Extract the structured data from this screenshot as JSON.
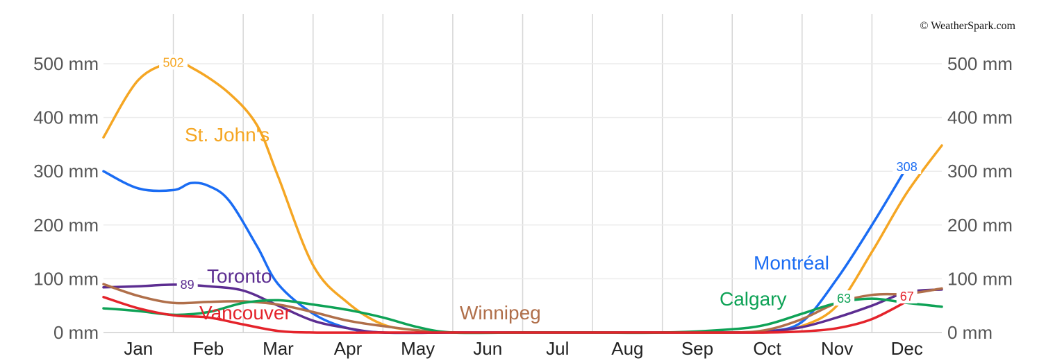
{
  "credit": "© WeatherSpark.com",
  "chart_data": {
    "type": "line",
    "title": "",
    "xlabel": "",
    "ylabel": "",
    "unit": "mm",
    "ylim": [
      0,
      550
    ],
    "y_ticks": [
      0,
      100,
      200,
      300,
      400,
      500
    ],
    "y_tick_labels": [
      "0 mm",
      "100 mm",
      "200 mm",
      "300 mm",
      "400 mm",
      "500 mm"
    ],
    "categories": [
      "Jan",
      "Feb",
      "Mar",
      "Apr",
      "May",
      "Jun",
      "Jul",
      "Aug",
      "Sep",
      "Oct",
      "Nov",
      "Dec"
    ],
    "grid": true,
    "legend": "inline labels",
    "series": [
      {
        "name": "St. John's",
        "color": "#f5a623",
        "x": [
          0,
          0.5,
          1,
          1.3,
          1.8,
          2.2,
          2.5,
          3,
          3.5,
          4,
          4.5,
          5,
          6,
          7,
          8,
          9,
          9.5,
          10,
          10.5,
          11,
          11.5,
          12
        ],
        "y": [
          363,
          470,
          502,
          490,
          445,
          385,
          290,
          125,
          55,
          15,
          4,
          0,
          0,
          0,
          0,
          0,
          2,
          12,
          50,
          150,
          260,
          348
        ],
        "labels": [
          {
            "x": 1,
            "y": 502,
            "text": "502"
          }
        ]
      },
      {
        "name": "Montréal",
        "color": "#1a6cf3",
        "x": [
          0,
          0.5,
          1,
          1.25,
          1.5,
          1.8,
          2.2,
          2.5,
          3,
          3.5,
          4,
          5,
          6,
          7,
          8,
          9,
          9.5,
          10,
          10.5,
          11,
          11.5
        ],
        "y": [
          300,
          268,
          265,
          278,
          273,
          245,
          160,
          90,
          35,
          8,
          0,
          0,
          0,
          0,
          0,
          0,
          2,
          20,
          100,
          200,
          308
        ],
        "labels": [
          {
            "x": 11.5,
            "y": 308,
            "text": "308"
          }
        ]
      },
      {
        "name": "Toronto",
        "color": "#5c2d91",
        "x": [
          0,
          0.5,
          1,
          1.5,
          2,
          2.5,
          3,
          3.5,
          4,
          5,
          6,
          7,
          8,
          9,
          9.5,
          10,
          10.5,
          11,
          11.5,
          12
        ],
        "y": [
          84,
          86,
          89,
          86,
          78,
          50,
          22,
          8,
          0,
          0,
          0,
          0,
          0,
          0,
          2,
          10,
          28,
          50,
          75,
          80
        ],
        "labels": [
          {
            "x": 1.2,
            "y": 89,
            "text": "89"
          }
        ]
      },
      {
        "name": "Winnipeg",
        "color": "#b06f4a",
        "x": [
          0,
          0.5,
          1,
          1.5,
          2,
          2.5,
          3,
          3.5,
          4,
          4.5,
          5,
          6,
          7,
          8,
          9,
          9.5,
          10,
          10.5,
          11,
          11.5,
          12
        ],
        "y": [
          90,
          68,
          55,
          57,
          58,
          52,
          38,
          22,
          12,
          4,
          0,
          0,
          0,
          0,
          0,
          5,
          25,
          55,
          70,
          72,
          82
        ],
        "labels": []
      },
      {
        "name": "Calgary",
        "color": "#0ea256",
        "x": [
          0,
          0.5,
          1,
          1.5,
          2,
          2.5,
          3,
          3.5,
          4,
          4.5,
          5,
          6,
          7,
          8,
          9,
          9.5,
          10,
          10.5,
          11,
          11.5,
          12
        ],
        "y": [
          45,
          40,
          33,
          38,
          55,
          60,
          52,
          42,
          28,
          10,
          0,
          0,
          0,
          0,
          6,
          15,
          35,
          55,
          63,
          55,
          48
        ],
        "labels": [
          {
            "x": 10.6,
            "y": 63,
            "text": "63"
          }
        ]
      },
      {
        "name": "Vancouver",
        "color": "#e4232b",
        "x": [
          0,
          0.5,
          1,
          1.5,
          2,
          2.5,
          3,
          4,
          5,
          6,
          7,
          8,
          9,
          9.5,
          10,
          10.5,
          11,
          11.5
        ],
        "y": [
          66,
          45,
          32,
          28,
          15,
          3,
          0,
          0,
          0,
          0,
          0,
          0,
          0,
          0,
          2,
          8,
          25,
          58
        ],
        "labels": [
          {
            "x": 11.5,
            "y": 67,
            "text": "67"
          }
        ]
      }
    ]
  }
}
